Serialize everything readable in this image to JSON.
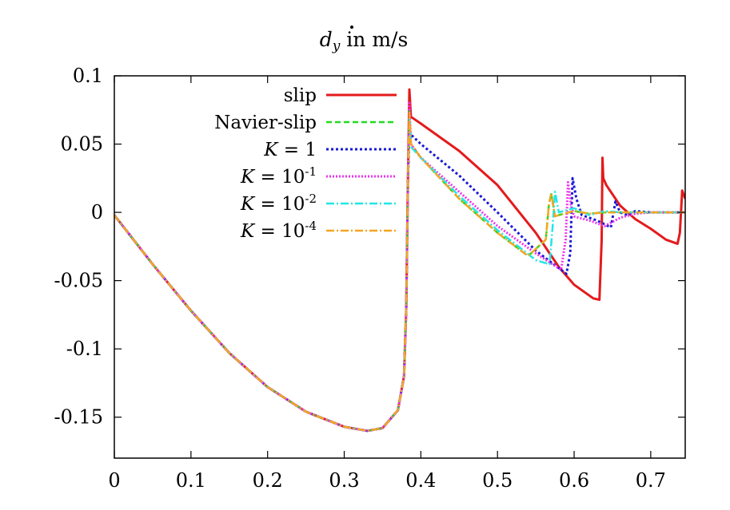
{
  "chart_data": {
    "type": "line",
    "title": "",
    "title_parts": {
      "var": "d",
      "sub": "y",
      "rest": " in m/s"
    },
    "xlabel": "",
    "ylabel": "",
    "xlim": [
      0,
      0.745
    ],
    "ylim": [
      -0.18,
      0.1
    ],
    "xticks": [
      {
        "v": 0,
        "label": "0"
      },
      {
        "v": 0.1,
        "label": "0.1"
      },
      {
        "v": 0.2,
        "label": "0.2"
      },
      {
        "v": 0.3,
        "label": "0.3"
      },
      {
        "v": 0.4,
        "label": "0.4"
      },
      {
        "v": 0.5,
        "label": "0.5"
      },
      {
        "v": 0.6,
        "label": "0.6"
      },
      {
        "v": 0.7,
        "label": "0.7"
      }
    ],
    "yticks": [
      {
        "v": 0.1,
        "label": "0.1"
      },
      {
        "v": 0.05,
        "label": "0.05"
      },
      {
        "v": 0,
        "label": "0"
      },
      {
        "v": -0.05,
        "label": "-0.05"
      },
      {
        "v": -0.1,
        "label": "-0.1"
      },
      {
        "v": -0.15,
        "label": "-0.15"
      }
    ],
    "grid": false,
    "legend": "top-left",
    "series": [
      {
        "name": "slip",
        "color": "#e41a1c",
        "dash": "",
        "width": 3,
        "x": [
          0,
          0.05,
          0.1,
          0.15,
          0.2,
          0.25,
          0.3,
          0.33,
          0.35,
          0.37,
          0.378,
          0.381,
          0.383,
          0.385,
          0.387,
          0.4,
          0.45,
          0.5,
          0.55,
          0.58,
          0.6,
          0.625,
          0.633,
          0.636,
          0.637,
          0.638,
          0.642,
          0.66,
          0.68,
          0.7,
          0.72,
          0.735,
          0.738,
          0.741,
          0.745
        ],
        "y": [
          -0.002,
          -0.038,
          -0.072,
          -0.103,
          -0.128,
          -0.146,
          -0.157,
          -0.16,
          -0.158,
          -0.145,
          -0.12,
          -0.07,
          0.02,
          0.09,
          0.07,
          0.065,
          0.045,
          0.02,
          -0.015,
          -0.04,
          -0.053,
          -0.063,
          -0.064,
          -0.02,
          0.04,
          0.025,
          0.02,
          0.005,
          -0.005,
          -0.012,
          -0.02,
          -0.023,
          -0.015,
          0.016,
          0.01
        ]
      },
      {
        "name": "Navier-slip",
        "color": "#1fdc1f",
        "dash": "7,4",
        "width": 2.5,
        "x": [
          0,
          0.05,
          0.1,
          0.15,
          0.2,
          0.25,
          0.3,
          0.33,
          0.35,
          0.37,
          0.378,
          0.381,
          0.383,
          0.385,
          0.387,
          0.4,
          0.45,
          0.5,
          0.54,
          0.563,
          0.567,
          0.57,
          0.575,
          0.58,
          0.6,
          0.62,
          0.64,
          0.66,
          0.68,
          0.7,
          0.745
        ],
        "y": [
          -0.002,
          -0.038,
          -0.072,
          -0.103,
          -0.128,
          -0.146,
          -0.157,
          -0.16,
          -0.158,
          -0.145,
          -0.12,
          -0.07,
          0.02,
          0.075,
          0.05,
          0.04,
          0.01,
          -0.015,
          -0.032,
          -0.02,
          0.005,
          0.014,
          -0.003,
          -0.002,
          0.001,
          -0.001,
          0,
          0,
          0,
          0,
          0
        ]
      },
      {
        "name": "K = 1",
        "color": "#1a1ad4",
        "dash": "3,3",
        "width": 3,
        "x": [
          0,
          0.05,
          0.1,
          0.15,
          0.2,
          0.25,
          0.3,
          0.33,
          0.35,
          0.37,
          0.378,
          0.381,
          0.383,
          0.385,
          0.387,
          0.4,
          0.45,
          0.5,
          0.55,
          0.59,
          0.595,
          0.598,
          0.603,
          0.61,
          0.63,
          0.648,
          0.654,
          0.66,
          0.67,
          0.68,
          0.7,
          0.745
        ],
        "y": [
          -0.002,
          -0.038,
          -0.072,
          -0.103,
          -0.128,
          -0.146,
          -0.157,
          -0.16,
          -0.158,
          -0.145,
          -0.12,
          -0.07,
          0.02,
          0.06,
          0.057,
          0.05,
          0.027,
          0.0,
          -0.028,
          -0.045,
          -0.03,
          0.025,
          0.01,
          -0.002,
          -0.006,
          -0.011,
          0.008,
          0.0,
          -0.002,
          0.001,
          0,
          0
        ]
      },
      {
        "name": "K = 10^{-1}",
        "color": "#ee33ee",
        "dash": "2,2",
        "width": 3,
        "x": [
          0,
          0.05,
          0.1,
          0.15,
          0.2,
          0.25,
          0.3,
          0.33,
          0.35,
          0.37,
          0.378,
          0.381,
          0.383,
          0.385,
          0.387,
          0.4,
          0.45,
          0.5,
          0.55,
          0.583,
          0.589,
          0.592,
          0.596,
          0.6,
          0.62,
          0.64,
          0.66,
          0.68,
          0.7,
          0.745
        ],
        "y": [
          -0.002,
          -0.038,
          -0.072,
          -0.103,
          -0.128,
          -0.146,
          -0.157,
          -0.16,
          -0.158,
          -0.145,
          -0.12,
          -0.07,
          0.02,
          0.08,
          0.05,
          0.04,
          0.015,
          -0.01,
          -0.03,
          -0.042,
          -0.02,
          0.022,
          0.005,
          -0.003,
          -0.006,
          -0.01,
          -0.004,
          -0.001,
          0,
          0
        ]
      },
      {
        "name": "K = 10^{-2}",
        "color": "#22e6e6",
        "dash": "10,3,2,3",
        "width": 2.5,
        "x": [
          0,
          0.05,
          0.1,
          0.15,
          0.2,
          0.25,
          0.3,
          0.33,
          0.35,
          0.37,
          0.378,
          0.381,
          0.383,
          0.385,
          0.387,
          0.4,
          0.45,
          0.5,
          0.55,
          0.568,
          0.572,
          0.575,
          0.58,
          0.6,
          0.62,
          0.64,
          0.66,
          0.68,
          0.7,
          0.745
        ],
        "y": [
          -0.002,
          -0.038,
          -0.072,
          -0.103,
          -0.128,
          -0.146,
          -0.157,
          -0.16,
          -0.158,
          -0.145,
          -0.12,
          -0.07,
          0.02,
          0.07,
          0.048,
          0.04,
          0.012,
          -0.013,
          -0.035,
          -0.038,
          -0.01,
          0.015,
          0.0,
          0.003,
          -0.002,
          0.001,
          0,
          0,
          0,
          0
        ]
      },
      {
        "name": "K = 10^{-4}",
        "color": "#f5a623",
        "dash": "10,3,2,3",
        "width": 2.5,
        "x": [
          0,
          0.05,
          0.1,
          0.15,
          0.2,
          0.25,
          0.3,
          0.33,
          0.35,
          0.37,
          0.378,
          0.381,
          0.383,
          0.385,
          0.387,
          0.4,
          0.45,
          0.5,
          0.54,
          0.563,
          0.567,
          0.57,
          0.575,
          0.58,
          0.6,
          0.62,
          0.64,
          0.66,
          0.68,
          0.7,
          0.745
        ],
        "y": [
          -0.002,
          -0.038,
          -0.072,
          -0.103,
          -0.128,
          -0.146,
          -0.157,
          -0.16,
          -0.158,
          -0.145,
          -0.12,
          -0.07,
          0.02,
          0.073,
          0.05,
          0.04,
          0.01,
          -0.015,
          -0.032,
          -0.02,
          0.005,
          0.014,
          -0.003,
          -0.002,
          0.001,
          -0.001,
          0,
          0,
          0,
          0,
          0
        ]
      }
    ]
  }
}
